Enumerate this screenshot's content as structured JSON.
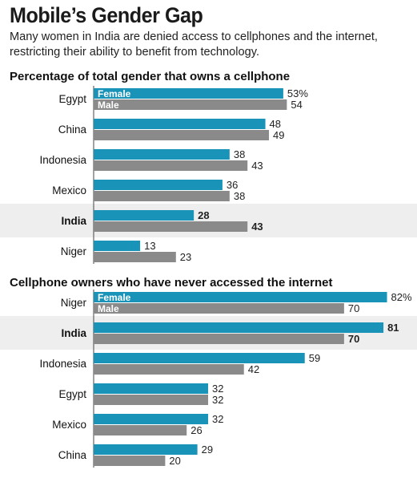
{
  "title": "Mobile’s Gender Gap",
  "subtitle": "Many women in India are denied access to cellphones and the internet, restricting their ability to benefit from technology.",
  "colors": {
    "female": "#1a93b9",
    "male": "#8a8a8a",
    "highlight_band": "#eeeeee",
    "axis": "#444444"
  },
  "chart_data": [
    {
      "type": "bar",
      "title": "Percentage of total gender that owns a cellphone",
      "orientation": "horizontal",
      "categories": [
        "Egypt",
        "China",
        "Indonesia",
        "Mexico",
        "India",
        "Niger"
      ],
      "highlight": "India",
      "unit_suffix_first": "%",
      "series": [
        {
          "name": "Female",
          "values": [
            53,
            48,
            38,
            36,
            28,
            13
          ]
        },
        {
          "name": "Male",
          "values": [
            54,
            49,
            43,
            38,
            43,
            23
          ]
        }
      ]
    },
    {
      "type": "bar",
      "title": "Cellphone owners who have never accessed the internet",
      "orientation": "horizontal",
      "categories": [
        "Niger",
        "India",
        "Indonesia",
        "Egypt",
        "Mexico",
        "China"
      ],
      "highlight": "India",
      "unit_suffix_first": "%",
      "series": [
        {
          "name": "Female",
          "values": [
            82,
            81,
            59,
            32,
            32,
            29
          ]
        },
        {
          "name": "Male",
          "values": [
            70,
            70,
            42,
            32,
            26,
            20
          ]
        }
      ]
    }
  ]
}
